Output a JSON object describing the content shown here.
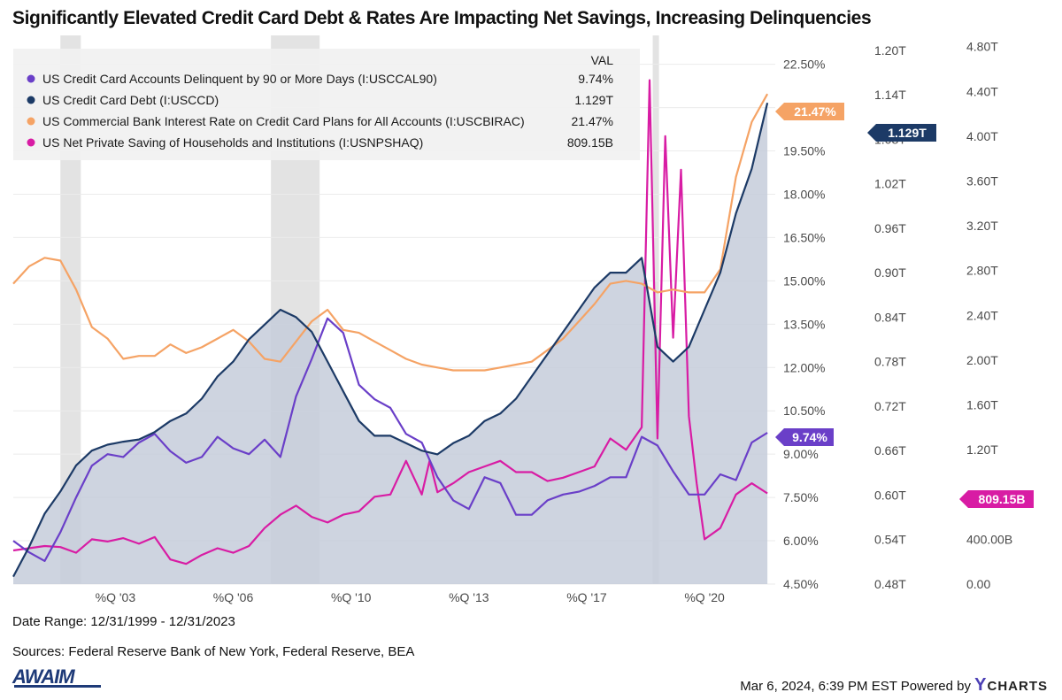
{
  "title": "Significantly Elevated Credit Card Debt & Rates Are Impacting Net Savings, Increasing Delinquencies",
  "date_range": "Date Range: 12/31/1999 - 12/31/2023",
  "sources": "Sources: Federal Reserve Bank of New York, Federal Reserve, BEA",
  "logo_text": "AWAIM",
  "footer": {
    "timestamp": "Mar 6, 2024, 6:39 PM EST Powered by",
    "brand_first": "Y",
    "brand_rest": "CHARTS"
  },
  "chart_data": {
    "type": "line",
    "legend_header": "VAL",
    "legend_position": "top-left",
    "x_range": [
      1999.75,
      2024.0
    ],
    "x_ticks": [
      {
        "x": 2003.0,
        "label": "%Q '03"
      },
      {
        "x": 2006.75,
        "label": "%Q '06"
      },
      {
        "x": 2010.5,
        "label": "%Q '10"
      },
      {
        "x": 2014.25,
        "label": "%Q '13"
      },
      {
        "x": 2018.0,
        "label": "%Q '17"
      },
      {
        "x": 2021.75,
        "label": "%Q '20"
      }
    ],
    "recessions": [
      [
        2001.25,
        2001.9
      ],
      [
        2007.95,
        2009.5
      ],
      [
        2020.1,
        2020.3
      ]
    ],
    "axes": [
      {
        "name": "rate",
        "range": [
          4.5,
          23.5
        ],
        "ticks": [
          "22.50%",
          "21.00%",
          "19.50%",
          "18.00%",
          "16.50%",
          "15.00%",
          "13.50%",
          "12.00%",
          "10.50%",
          "9.00%",
          "7.50%",
          "6.00%",
          "4.50%"
        ],
        "tick_values": [
          22.5,
          21,
          19.5,
          18,
          16.5,
          15,
          13.5,
          12,
          10.5,
          9,
          7.5,
          6,
          4.5
        ]
      },
      {
        "name": "debt",
        "range": [
          0.48,
          1.22
        ],
        "ticks": [
          "1.20T",
          "1.14T",
          "1.08T",
          "1.02T",
          "0.96T",
          "0.90T",
          "0.84T",
          "0.78T",
          "0.72T",
          "0.66T",
          "0.60T",
          "0.54T",
          "0.48T"
        ],
        "tick_values": [
          1.2,
          1.14,
          1.08,
          1.02,
          0.96,
          0.9,
          0.84,
          0.78,
          0.72,
          0.66,
          0.6,
          0.54,
          0.48
        ]
      },
      {
        "name": "saving",
        "range": [
          0,
          4.9
        ],
        "ticks": [
          "4.80T",
          "4.40T",
          "4.00T",
          "3.60T",
          "3.20T",
          "2.80T",
          "2.40T",
          "2.00T",
          "1.60T",
          "1.20T",
          "800.00B",
          "400.00B",
          "0.00"
        ],
        "tick_values": [
          4.8,
          4.4,
          4.0,
          3.6,
          3.2,
          2.8,
          2.4,
          2.0,
          1.6,
          1.2,
          0.8,
          0.4,
          0.0
        ]
      }
    ],
    "series": [
      {
        "name": "US Credit Card Accounts Delinquent by 90 or More Days (I:USCCAL90)",
        "value_label": "9.74%",
        "color": "#6a3fc8",
        "axis": "rate",
        "x": [
          1999.75,
          2000.25,
          2000.75,
          2001.25,
          2001.75,
          2002.25,
          2002.75,
          2003.25,
          2003.75,
          2004.25,
          2004.75,
          2005.25,
          2005.75,
          2006.25,
          2006.75,
          2007.25,
          2007.75,
          2008.25,
          2008.75,
          2009.25,
          2009.75,
          2010.25,
          2010.75,
          2011.25,
          2011.75,
          2012.25,
          2012.75,
          2013.25,
          2013.75,
          2014.25,
          2014.75,
          2015.25,
          2015.75,
          2016.25,
          2016.75,
          2017.25,
          2017.75,
          2018.25,
          2018.75,
          2019.25,
          2019.75,
          2020.25,
          2020.75,
          2021.25,
          2021.75,
          2022.25,
          2022.75,
          2023.25,
          2023.75
        ],
        "values": [
          6.0,
          5.6,
          5.3,
          6.3,
          7.5,
          8.6,
          9.0,
          8.9,
          9.4,
          9.7,
          9.1,
          8.7,
          8.9,
          9.6,
          9.2,
          9.0,
          9.5,
          8.9,
          11.0,
          12.3,
          13.7,
          13.2,
          11.4,
          10.9,
          10.6,
          9.7,
          9.4,
          8.2,
          7.4,
          7.1,
          8.2,
          8.0,
          6.9,
          6.9,
          7.4,
          7.6,
          7.7,
          7.9,
          8.2,
          8.2,
          9.6,
          9.3,
          8.4,
          7.6,
          7.6,
          8.3,
          8.1,
          9.4,
          9.74
        ]
      },
      {
        "name": "US Credit Card Debt (I:USCCD)",
        "value_label": "1.129T",
        "color": "#1c3a66",
        "axis": "debt",
        "x": [
          1999.75,
          2000.25,
          2000.75,
          2001.25,
          2001.75,
          2002.25,
          2002.75,
          2003.25,
          2003.75,
          2004.25,
          2004.75,
          2005.25,
          2005.75,
          2006.25,
          2006.75,
          2007.25,
          2007.75,
          2008.25,
          2008.75,
          2009.25,
          2009.75,
          2010.25,
          2010.75,
          2011.25,
          2011.75,
          2012.25,
          2012.75,
          2013.25,
          2013.75,
          2014.25,
          2014.75,
          2015.25,
          2015.75,
          2016.25,
          2016.75,
          2017.25,
          2017.75,
          2018.25,
          2018.75,
          2019.25,
          2019.75,
          2020.25,
          2020.75,
          2021.25,
          2021.75,
          2022.25,
          2022.75,
          2023.25,
          2023.75
        ],
        "values": [
          0.49,
          0.53,
          0.575,
          0.605,
          0.64,
          0.66,
          0.668,
          0.672,
          0.675,
          0.685,
          0.7,
          0.71,
          0.73,
          0.76,
          0.78,
          0.81,
          0.83,
          0.85,
          0.84,
          0.82,
          0.78,
          0.74,
          0.7,
          0.68,
          0.68,
          0.67,
          0.66,
          0.655,
          0.67,
          0.68,
          0.7,
          0.71,
          0.73,
          0.76,
          0.79,
          0.82,
          0.85,
          0.88,
          0.9,
          0.9,
          0.92,
          0.8,
          0.78,
          0.8,
          0.85,
          0.9,
          0.98,
          1.04,
          1.129
        ]
      },
      {
        "name": "US Commercial Bank Interest Rate on Credit Card Plans for All Accounts (I:USCBIRAC)",
        "value_label": "21.47%",
        "color": "#f5a365",
        "axis": "rate",
        "x": [
          1999.75,
          2000.25,
          2000.75,
          2001.25,
          2001.75,
          2002.25,
          2002.75,
          2003.25,
          2003.75,
          2004.25,
          2004.75,
          2005.25,
          2005.75,
          2006.25,
          2006.75,
          2007.25,
          2007.75,
          2008.25,
          2008.75,
          2009.25,
          2009.75,
          2010.25,
          2010.75,
          2011.25,
          2011.75,
          2012.25,
          2012.75,
          2013.25,
          2013.75,
          2014.25,
          2014.75,
          2015.25,
          2015.75,
          2016.25,
          2016.75,
          2017.25,
          2017.75,
          2018.25,
          2018.75,
          2019.25,
          2019.75,
          2020.25,
          2020.75,
          2021.25,
          2021.75,
          2022.25,
          2022.75,
          2023.25,
          2023.75
        ],
        "values": [
          14.9,
          15.5,
          15.8,
          15.7,
          14.7,
          13.4,
          13.0,
          12.3,
          12.4,
          12.4,
          12.8,
          12.5,
          12.7,
          13.0,
          13.3,
          12.9,
          12.3,
          12.2,
          12.9,
          13.6,
          14.0,
          13.3,
          13.2,
          12.9,
          12.6,
          12.3,
          12.1,
          12.0,
          11.9,
          11.9,
          11.9,
          12.0,
          12.1,
          12.2,
          12.6,
          13.0,
          13.6,
          14.2,
          14.9,
          15.0,
          14.9,
          14.6,
          14.7,
          14.6,
          14.6,
          15.4,
          18.6,
          20.5,
          21.47
        ]
      },
      {
        "name": "US Net Private Saving of Households and Institutions (I:USNPSHAQ)",
        "value_label": "809.15B",
        "color": "#d81ca4",
        "axis": "saving",
        "x": [
          1999.75,
          2000.25,
          2000.75,
          2001.25,
          2001.75,
          2002.25,
          2002.75,
          2003.25,
          2003.75,
          2004.25,
          2004.75,
          2005.25,
          2005.75,
          2006.25,
          2006.75,
          2007.25,
          2007.75,
          2008.25,
          2008.75,
          2009.25,
          2009.75,
          2010.25,
          2010.75,
          2011.25,
          2011.75,
          2012.25,
          2012.75,
          2013.0,
          2013.25,
          2013.75,
          2014.25,
          2014.75,
          2015.25,
          2015.75,
          2016.25,
          2016.75,
          2017.25,
          2017.75,
          2018.25,
          2018.75,
          2019.25,
          2019.75,
          2020.0,
          2020.25,
          2020.5,
          2020.75,
          2021.0,
          2021.25,
          2021.5,
          2021.75,
          2022.25,
          2022.75,
          2023.25,
          2023.75
        ],
        "values": [
          0.3,
          0.32,
          0.34,
          0.33,
          0.28,
          0.4,
          0.38,
          0.41,
          0.36,
          0.42,
          0.22,
          0.18,
          0.26,
          0.32,
          0.28,
          0.34,
          0.5,
          0.62,
          0.7,
          0.6,
          0.55,
          0.62,
          0.65,
          0.78,
          0.8,
          1.1,
          0.8,
          1.1,
          0.82,
          0.9,
          1.0,
          1.05,
          1.1,
          1.0,
          1.0,
          0.92,
          0.95,
          1.0,
          1.05,
          1.3,
          1.2,
          1.4,
          4.5,
          1.3,
          4.0,
          2.2,
          3.7,
          1.5,
          0.9,
          0.4,
          0.5,
          0.8,
          0.9,
          0.81
        ]
      }
    ]
  }
}
